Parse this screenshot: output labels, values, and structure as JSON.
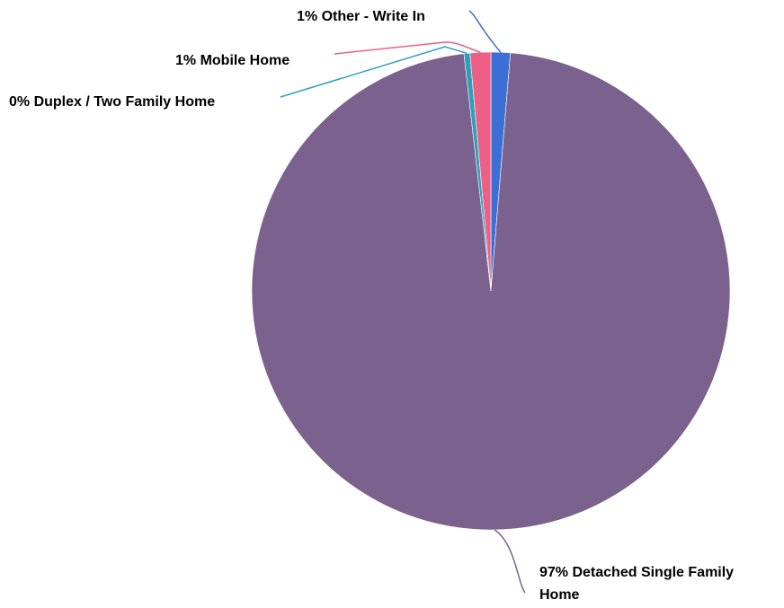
{
  "chart_data": {
    "type": "pie",
    "title": "",
    "slices": [
      {
        "label": "Other - Write In",
        "pct_label": "1%",
        "value": 1.3,
        "color": "#3b6fd6"
      },
      {
        "label": "Detached Single Family Home",
        "pct_label": "97%",
        "value": 96.9,
        "color": "#7b618d"
      },
      {
        "label": "Duplex / Two Family Home",
        "pct_label": "0%",
        "value": 0.4,
        "color": "#2f9fb7"
      },
      {
        "label": "Mobile Home",
        "pct_label": "1%",
        "value": 1.4,
        "color": "#ee5f86"
      }
    ],
    "start_angle_deg": 0,
    "direction": "clockwise",
    "legend": "none",
    "labels": "outside-with-leader-lines"
  }
}
